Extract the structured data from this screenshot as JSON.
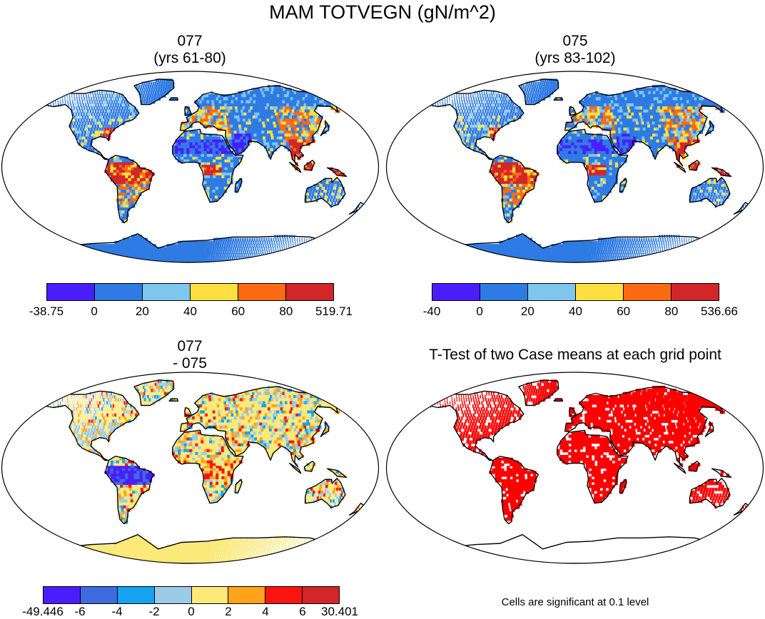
{
  "figure": {
    "title": "MAM TOTVEGN (gN/m^2)"
  },
  "panels": [
    {
      "id": "p1",
      "title_line1": "077",
      "title_line2": "(yrs 61-80)",
      "colorbar": {
        "colors": [
          "#4a1efc",
          "#2f7be4",
          "#7ec6ee",
          "#fde03f",
          "#fc6a14",
          "#d22628"
        ],
        "ticks": [
          "-38.75",
          "0",
          "20",
          "40",
          "60",
          "80",
          "519.71"
        ]
      }
    },
    {
      "id": "p2",
      "title_line1": "075",
      "title_line2": "(yrs 83-102)",
      "colorbar": {
        "colors": [
          "#4a1efc",
          "#2f7be4",
          "#7ec6ee",
          "#fde03f",
          "#fc6a14",
          "#d22628"
        ],
        "ticks": [
          "-40",
          "0",
          "20",
          "40",
          "60",
          "80",
          "536.66"
        ]
      }
    },
    {
      "id": "p3",
      "title_line1": "077",
      "title_line2": "- 075",
      "colorbar": {
        "colors": [
          "#4a1efc",
          "#3e6be0",
          "#14a4f0",
          "#9ccbe8",
          "#fbe97a",
          "#ffa31a",
          "#fc1410",
          "#d22628"
        ],
        "ticks": [
          "-49.446",
          "-6",
          "-4",
          "-2",
          "0",
          "2",
          "4",
          "6",
          "30.401"
        ]
      }
    },
    {
      "id": "p4",
      "title_line1": "T-Test of two Case means at each grid point",
      "note": "Cells are significant at 0.1 level",
      "fill_color": "#ff0000"
    }
  ]
}
